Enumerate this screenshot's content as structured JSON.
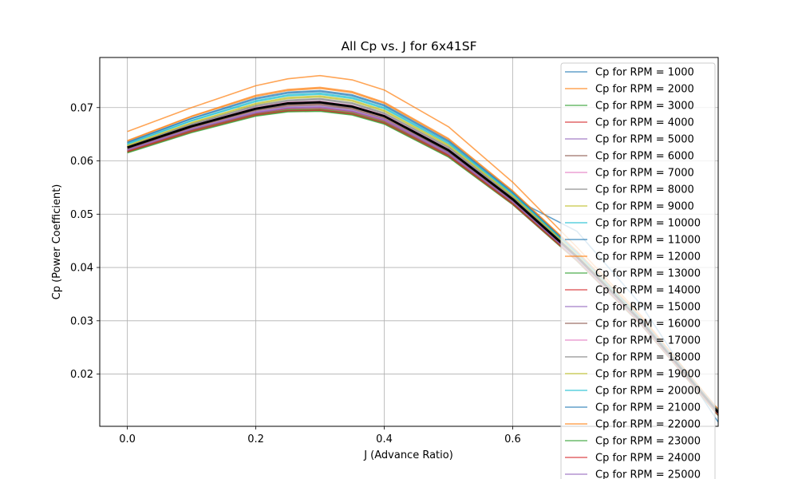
{
  "chart_data": {
    "type": "line",
    "title": "All Cp vs. J for 6x41SF",
    "xlabel": "J (Advance Ratio)",
    "ylabel": "Cp (Power Coefficient)",
    "xlim": [
      -0.043,
      0.92
    ],
    "ylim": [
      0.0102,
      0.0794
    ],
    "xticks": [
      "0.0",
      "0.2",
      "0.4",
      "0.6"
    ],
    "yticks": [
      "0.02",
      "0.03",
      "0.04",
      "0.05",
      "0.06",
      "0.07"
    ],
    "grid": true,
    "legend_position": "top-right",
    "colors": [
      "#1f77b4",
      "#ff7f0e",
      "#2ca02c",
      "#d62728",
      "#9467bd",
      "#8c564b",
      "#e377c2",
      "#7f7f7f",
      "#bcbd22",
      "#17becf"
    ],
    "x": [
      0.0,
      0.1,
      0.2,
      0.25,
      0.3,
      0.35,
      0.4,
      0.5,
      0.6,
      0.7,
      0.8,
      0.92
    ],
    "series": [
      {
        "name": "Cp for RPM = 1000",
        "values": [
          0.0625,
          0.0664,
          0.0696,
          0.0706,
          0.0708,
          0.07,
          0.0684,
          0.0616,
          0.053,
          0.0468,
          0.033,
          0.011
        ]
      },
      {
        "name": "Cp for RPM = 2000",
        "values": [
          0.0655,
          0.07,
          0.0741,
          0.0754,
          0.076,
          0.0752,
          0.0733,
          0.0664,
          0.056,
          0.0438,
          0.031,
          0.013
        ]
      },
      {
        "name": "Cp for RPM = 3000",
        "values": [
          0.0615,
          0.0653,
          0.0684,
          0.0692,
          0.0693,
          0.0686,
          0.0669,
          0.0607,
          0.0518,
          0.0412,
          0.0292,
          0.0122
        ]
      },
      {
        "name": "Cp for RPM = 4000",
        "values": [
          0.0617,
          0.0656,
          0.0687,
          0.0695,
          0.0696,
          0.0689,
          0.0672,
          0.061,
          0.052,
          0.0414,
          0.0294,
          0.0124
        ]
      },
      {
        "name": "Cp for RPM = 5000",
        "values": [
          0.062,
          0.0659,
          0.0691,
          0.0699,
          0.0701,
          0.0693,
          0.0676,
          0.0613,
          0.0523,
          0.0416,
          0.0296,
          0.0126
        ]
      },
      {
        "name": "Cp for RPM = 6000",
        "values": [
          0.0622,
          0.0662,
          0.0694,
          0.0703,
          0.0705,
          0.0697,
          0.0679,
          0.0616,
          0.0525,
          0.0418,
          0.0297,
          0.0127
        ]
      },
      {
        "name": "Cp for RPM = 7000",
        "values": [
          0.0624,
          0.0665,
          0.0698,
          0.0708,
          0.071,
          0.0702,
          0.0684,
          0.062,
          0.0528,
          0.042,
          0.0299,
          0.0128
        ]
      },
      {
        "name": "Cp for RPM = 8000",
        "values": [
          0.0626,
          0.0668,
          0.0702,
          0.0712,
          0.0715,
          0.0707,
          0.0688,
          0.0624,
          0.0531,
          0.0422,
          0.0301,
          0.0129
        ]
      },
      {
        "name": "Cp for RPM = 9000",
        "values": [
          0.0628,
          0.0671,
          0.0706,
          0.0717,
          0.072,
          0.0712,
          0.0693,
          0.0628,
          0.0534,
          0.0424,
          0.0302,
          0.013
        ]
      },
      {
        "name": "Cp for RPM = 10000",
        "values": [
          0.0631,
          0.0675,
          0.0711,
          0.0722,
          0.0725,
          0.0717,
          0.0698,
          0.0632,
          0.0537,
          0.0426,
          0.0304,
          0.0131
        ]
      },
      {
        "name": "Cp for RPM = 11000",
        "values": [
          0.0634,
          0.0679,
          0.0716,
          0.0727,
          0.073,
          0.0722,
          0.0703,
          0.0636,
          0.054,
          0.0428,
          0.0305,
          0.0132
        ]
      },
      {
        "name": "Cp for RPM = 12000",
        "values": [
          0.0637,
          0.0683,
          0.0721,
          0.0732,
          0.0736,
          0.0728,
          0.0708,
          0.064,
          0.0543,
          0.043,
          0.0306,
          0.0133
        ]
      },
      {
        "name": "Cp for RPM = 13000",
        "values": [
          0.0618,
          0.0657,
          0.0688,
          0.0696,
          0.0697,
          0.069,
          0.0673,
          0.0611,
          0.0521,
          0.0415,
          0.0295,
          0.0125
        ]
      },
      {
        "name": "Cp for RPM = 14000",
        "values": [
          0.0619,
          0.0658,
          0.0689,
          0.0698,
          0.0699,
          0.0692,
          0.0675,
          0.0612,
          0.0522,
          0.0416,
          0.0296,
          0.0126
        ]
      },
      {
        "name": "Cp for RPM = 15000",
        "values": [
          0.0621,
          0.066,
          0.0692,
          0.0701,
          0.0703,
          0.0695,
          0.0678,
          0.0615,
          0.0524,
          0.0417,
          0.0297,
          0.0127
        ]
      },
      {
        "name": "Cp for RPM = 16000",
        "values": [
          0.0623,
          0.0663,
          0.0696,
          0.0705,
          0.0707,
          0.0699,
          0.0681,
          0.0618,
          0.0526,
          0.0419,
          0.0298,
          0.0128
        ]
      },
      {
        "name": "Cp for RPM = 17000",
        "values": [
          0.0625,
          0.0666,
          0.07,
          0.071,
          0.0712,
          0.0704,
          0.0686,
          0.0622,
          0.0529,
          0.0421,
          0.03,
          0.0129
        ]
      },
      {
        "name": "Cp for RPM = 18000",
        "values": [
          0.0627,
          0.0669,
          0.0704,
          0.0714,
          0.0717,
          0.0709,
          0.069,
          0.0626,
          0.0532,
          0.0423,
          0.0301,
          0.013
        ]
      },
      {
        "name": "Cp for RPM = 19000",
        "values": [
          0.0629,
          0.0672,
          0.0708,
          0.0719,
          0.0722,
          0.0714,
          0.0695,
          0.063,
          0.0535,
          0.0425,
          0.0303,
          0.0131
        ]
      },
      {
        "name": "Cp for RPM = 20000",
        "values": [
          0.0632,
          0.0676,
          0.0713,
          0.0724,
          0.0727,
          0.0719,
          0.07,
          0.0634,
          0.0538,
          0.0427,
          0.0304,
          0.0132
        ]
      },
      {
        "name": "Cp for RPM = 21000",
        "values": [
          0.0635,
          0.068,
          0.0718,
          0.0729,
          0.0732,
          0.0724,
          0.0705,
          0.0638,
          0.0541,
          0.0429,
          0.0305,
          0.0133
        ]
      },
      {
        "name": "Cp for RPM = 22000",
        "values": [
          0.0638,
          0.0684,
          0.0723,
          0.0734,
          0.0738,
          0.073,
          0.071,
          0.0642,
          0.0544,
          0.0431,
          0.0307,
          0.0134
        ]
      },
      {
        "name": "Cp for RPM = 23000",
        "values": [
          0.0616,
          0.0654,
          0.0685,
          0.0693,
          0.0694,
          0.0687,
          0.067,
          0.0608,
          0.0519,
          0.0413,
          0.0293,
          0.0123
        ]
      },
      {
        "name": "Cp for RPM = 24000",
        "values": [
          0.0617,
          0.0655,
          0.0686,
          0.0694,
          0.0695,
          0.0688,
          0.0671,
          0.0609,
          0.0519,
          0.0413,
          0.0293,
          0.0123
        ]
      },
      {
        "name": "Cp for RPM = 25000",
        "values": [
          0.062,
          0.0659,
          0.069,
          0.0699,
          0.07,
          0.0693,
          0.0676,
          0.0613,
          0.0523,
          0.0416,
          0.0296,
          0.0126
        ]
      }
    ],
    "mean_line": {
      "color": "#000000",
      "values": [
        0.0625,
        0.0665,
        0.0698,
        0.0708,
        0.071,
        0.0702,
        0.0684,
        0.062,
        0.0528,
        0.042,
        0.0299,
        0.0128
      ]
    }
  }
}
